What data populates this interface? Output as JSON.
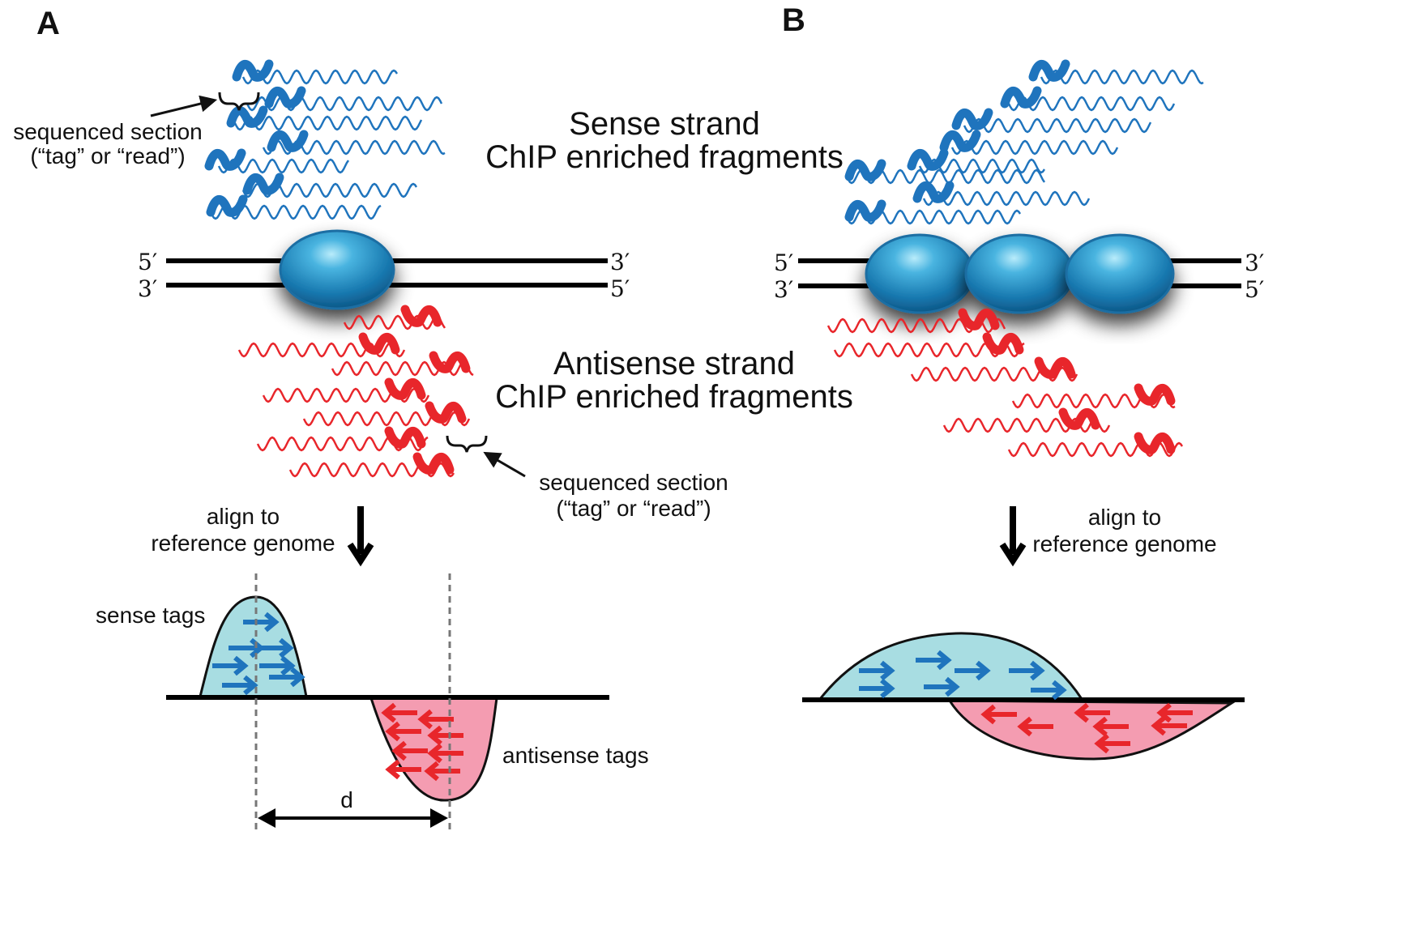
{
  "colors": {
    "sense": "#1f74bd",
    "antisense": "#e8262b",
    "sense_fill": "#a8dde2",
    "antisense_fill": "#f49cb1",
    "nucleosome": "#1e7eb8"
  },
  "panel_a": {
    "letter": "A",
    "sense_title_line1": "Sense strand",
    "sense_title_line2": "ChIP enriched fragments",
    "antisense_title_line1": "Antisense strand",
    "antisense_title_line2": "ChIP enriched fragments",
    "seq_label_top_line1": "sequenced section",
    "seq_label_top_line2": "(“tag” or  “read”)",
    "seq_label_bottom_line1": "sequenced section",
    "seq_label_bottom_line2": "(“tag” or  “read”)",
    "strand_top_left": "5′",
    "strand_top_right": "3′",
    "strand_bottom_left": "3′",
    "strand_bottom_right": "5′",
    "align_line1": "align to",
    "align_line2": "reference genome",
    "sense_tags_label": "sense tags",
    "antisense_tags_label": "antisense tags",
    "distance_label": "d"
  },
  "panel_b": {
    "letter": "B",
    "strand_top_left": "5′",
    "strand_top_right": "3′",
    "strand_bottom_left": "3′",
    "strand_bottom_right": "5′",
    "align_line1": "align to",
    "align_line2": "reference genome"
  }
}
